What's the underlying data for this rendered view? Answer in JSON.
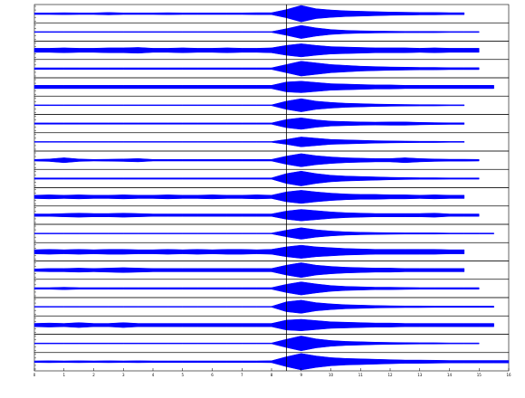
{
  "chart_data": {
    "type": "seismogram",
    "color": "#0000ff",
    "pick": 8.5,
    "xlim": [
      0,
      16
    ],
    "xticks": [
      0,
      1,
      2,
      3,
      4,
      5,
      6,
      7,
      8,
      9,
      10,
      11,
      12,
      13,
      14,
      15,
      16
    ],
    "x": [
      0,
      0.5,
      1,
      1.5,
      2,
      2.5,
      3,
      3.5,
      4,
      4.5,
      5,
      5.5,
      6,
      6.5,
      7,
      7.5,
      8,
      8.5,
      9,
      9.5,
      10,
      10.5,
      11,
      11.5,
      12,
      12.5,
      13,
      13.5,
      14,
      14.5,
      15,
      15.5,
      16
    ],
    "series": [
      {
        "values": [
          0.1,
          0.1,
          0.12,
          0.1,
          0.1,
          0.15,
          0.1,
          0.1,
          0.1,
          0.12,
          0.1,
          0.1,
          0.1,
          0.1,
          0.1,
          0.12,
          0.12,
          0.5,
          1.0,
          0.6,
          0.45,
          0.35,
          0.3,
          0.25,
          0.2,
          0.18,
          0.15,
          0.15,
          0.12,
          0.12,
          null,
          null,
          null
        ]
      },
      {
        "values": [
          0.05,
          0.05,
          0.05,
          0.05,
          0.05,
          0.05,
          0.05,
          0.05,
          0.05,
          0.05,
          0.05,
          0.05,
          0.05,
          0.05,
          0.05,
          0.05,
          0.05,
          0.4,
          0.8,
          0.5,
          0.3,
          0.2,
          0.15,
          0.12,
          0.1,
          0.08,
          0.08,
          0.08,
          0.06,
          0.06,
          0.06,
          null,
          null
        ]
      },
      {
        "values": [
          0.25,
          0.25,
          0.3,
          0.25,
          0.25,
          0.3,
          0.3,
          0.35,
          0.25,
          0.25,
          0.3,
          0.25,
          0.25,
          0.3,
          0.25,
          0.25,
          0.3,
          0.6,
          0.8,
          0.6,
          0.45,
          0.4,
          0.35,
          0.3,
          0.3,
          0.3,
          0.25,
          0.3,
          0.25,
          0.25,
          0.25,
          null,
          null
        ]
      },
      {
        "values": [
          0.1,
          0.1,
          0.1,
          0.1,
          0.1,
          0.1,
          0.1,
          0.1,
          0.1,
          0.1,
          0.1,
          0.1,
          0.1,
          0.1,
          0.1,
          0.1,
          0.1,
          0.5,
          0.9,
          0.7,
          0.5,
          0.4,
          0.3,
          0.25,
          0.2,
          0.18,
          0.15,
          0.15,
          0.12,
          0.12,
          0.12,
          null,
          null
        ]
      },
      {
        "values": [
          0.2,
          0.2,
          0.2,
          0.2,
          0.2,
          0.2,
          0.2,
          0.2,
          0.2,
          0.2,
          0.2,
          0.2,
          0.2,
          0.2,
          0.2,
          0.2,
          0.2,
          0.6,
          0.7,
          0.55,
          0.4,
          0.35,
          0.3,
          0.25,
          0.25,
          0.2,
          0.2,
          0.2,
          0.2,
          0.2,
          0.2,
          0.2,
          null
        ]
      },
      {
        "values": [
          0.05,
          0.05,
          0.05,
          0.05,
          0.05,
          0.05,
          0.05,
          0.05,
          0.05,
          0.05,
          0.05,
          0.05,
          0.05,
          0.05,
          0.05,
          0.05,
          0.05,
          0.5,
          0.8,
          0.5,
          0.35,
          0.25,
          0.2,
          0.15,
          0.12,
          0.1,
          0.08,
          0.08,
          0.06,
          0.06,
          null,
          null,
          null
        ]
      },
      {
        "values": [
          0.08,
          0.08,
          0.08,
          0.08,
          0.08,
          0.08,
          0.08,
          0.08,
          0.08,
          0.08,
          0.08,
          0.08,
          0.08,
          0.08,
          0.08,
          0.08,
          0.08,
          0.5,
          0.7,
          0.45,
          0.3,
          0.25,
          0.2,
          0.18,
          0.2,
          0.2,
          0.15,
          0.12,
          0.1,
          0.1,
          null,
          null,
          null
        ]
      },
      {
        "values": [
          0.05,
          0.05,
          0.05,
          0.05,
          0.05,
          0.05,
          0.05,
          0.05,
          0.05,
          0.05,
          0.05,
          0.05,
          0.05,
          0.05,
          0.05,
          0.05,
          0.05,
          0.3,
          0.6,
          0.45,
          0.3,
          0.25,
          0.2,
          0.15,
          0.12,
          0.1,
          0.08,
          0.08,
          0.06,
          0.06,
          null,
          null,
          null
        ]
      },
      {
        "values": [
          0.1,
          0.15,
          0.3,
          0.15,
          0.1,
          0.12,
          0.15,
          0.2,
          0.1,
          0.1,
          0.1,
          0.1,
          0.1,
          0.1,
          0.1,
          0.1,
          0.1,
          0.5,
          0.8,
          0.55,
          0.4,
          0.3,
          0.25,
          0.2,
          0.2,
          0.3,
          0.2,
          0.15,
          0.12,
          0.12,
          0.1,
          null,
          null
        ]
      },
      {
        "values": [
          0.08,
          0.08,
          0.08,
          0.08,
          0.08,
          0.08,
          0.08,
          0.08,
          0.08,
          0.08,
          0.08,
          0.08,
          0.08,
          0.08,
          0.08,
          0.08,
          0.08,
          0.6,
          0.9,
          0.6,
          0.4,
          0.3,
          0.25,
          0.2,
          0.15,
          0.12,
          0.1,
          0.1,
          0.08,
          0.08,
          0.08,
          null,
          null
        ]
      },
      {
        "values": [
          0.2,
          0.25,
          0.2,
          0.25,
          0.2,
          0.2,
          0.25,
          0.2,
          0.2,
          0.25,
          0.2,
          0.2,
          0.25,
          0.2,
          0.2,
          0.25,
          0.2,
          0.6,
          0.8,
          0.6,
          0.45,
          0.35,
          0.3,
          0.3,
          0.25,
          0.25,
          0.2,
          0.25,
          0.2,
          0.2,
          null,
          null,
          null
        ]
      },
      {
        "values": [
          0.15,
          0.15,
          0.2,
          0.25,
          0.2,
          0.2,
          0.25,
          0.2,
          0.15,
          0.15,
          0.15,
          0.15,
          0.15,
          0.15,
          0.15,
          0.15,
          0.15,
          0.5,
          0.7,
          0.55,
          0.4,
          0.3,
          0.25,
          0.2,
          0.2,
          0.2,
          0.2,
          0.25,
          0.15,
          0.15,
          0.15,
          null,
          null
        ]
      },
      {
        "values": [
          0.05,
          0.05,
          0.05,
          0.05,
          0.05,
          0.05,
          0.05,
          0.05,
          0.05,
          0.05,
          0.05,
          0.05,
          0.05,
          0.05,
          0.05,
          0.05,
          0.05,
          0.4,
          0.7,
          0.45,
          0.3,
          0.2,
          0.15,
          0.12,
          0.1,
          0.08,
          0.08,
          0.08,
          0.06,
          0.06,
          0.06,
          0.06,
          null
        ]
      },
      {
        "values": [
          0.25,
          0.3,
          0.25,
          0.3,
          0.25,
          0.3,
          0.3,
          0.25,
          0.25,
          0.3,
          0.25,
          0.3,
          0.25,
          0.3,
          0.3,
          0.25,
          0.3,
          0.6,
          0.8,
          0.6,
          0.5,
          0.4,
          0.35,
          0.3,
          0.3,
          0.3,
          0.3,
          0.3,
          0.25,
          0.25,
          null,
          null,
          null
        ]
      },
      {
        "values": [
          0.15,
          0.2,
          0.2,
          0.25,
          0.2,
          0.25,
          0.3,
          0.25,
          0.2,
          0.2,
          0.2,
          0.2,
          0.2,
          0.2,
          0.2,
          0.2,
          0.2,
          0.6,
          0.9,
          0.6,
          0.45,
          0.35,
          0.3,
          0.25,
          0.25,
          0.2,
          0.2,
          0.2,
          0.2,
          0.2,
          null,
          null,
          null
        ]
      },
      {
        "values": [
          0.1,
          0.1,
          0.15,
          0.1,
          0.1,
          0.1,
          0.1,
          0.1,
          0.1,
          0.1,
          0.1,
          0.1,
          0.1,
          0.1,
          0.1,
          0.1,
          0.1,
          0.5,
          0.8,
          0.55,
          0.35,
          0.25,
          0.2,
          0.15,
          0.15,
          0.12,
          0.1,
          0.1,
          0.1,
          0.1,
          0.1,
          null,
          null
        ]
      },
      {
        "values": [
          0.05,
          0.05,
          0.05,
          0.05,
          0.05,
          0.05,
          0.05,
          0.05,
          0.05,
          0.05,
          0.05,
          0.05,
          0.05,
          0.05,
          0.05,
          0.05,
          0.05,
          0.6,
          0.8,
          0.5,
          0.35,
          0.25,
          0.2,
          0.15,
          0.12,
          0.1,
          0.1,
          0.08,
          0.08,
          0.08,
          0.08,
          0.08,
          null
        ]
      },
      {
        "values": [
          0.2,
          0.25,
          0.2,
          0.3,
          0.2,
          0.2,
          0.3,
          0.2,
          0.2,
          0.2,
          0.2,
          0.2,
          0.2,
          0.2,
          0.2,
          0.2,
          0.2,
          0.6,
          0.7,
          0.55,
          0.4,
          0.35,
          0.3,
          0.25,
          0.25,
          0.2,
          0.2,
          0.2,
          0.2,
          0.2,
          0.2,
          0.2,
          null
        ]
      },
      {
        "values": [
          0.05,
          0.05,
          0.05,
          0.05,
          0.05,
          0.05,
          0.05,
          0.05,
          0.05,
          0.05,
          0.05,
          0.05,
          0.05,
          0.05,
          0.05,
          0.05,
          0.05,
          0.5,
          0.9,
          0.55,
          0.35,
          0.25,
          0.2,
          0.15,
          0.12,
          0.1,
          0.08,
          0.08,
          0.06,
          0.06,
          0.06,
          null,
          null
        ]
      },
      {
        "values": [
          0.1,
          0.12,
          0.1,
          0.12,
          0.1,
          0.12,
          0.1,
          0.12,
          0.1,
          0.1,
          0.1,
          0.1,
          0.1,
          0.1,
          0.1,
          0.1,
          0.12,
          0.6,
          1.0,
          0.7,
          0.5,
          0.4,
          0.35,
          0.3,
          0.25,
          0.2,
          0.2,
          0.18,
          0.15,
          0.15,
          0.15,
          0.15,
          0.15
        ]
      }
    ]
  }
}
